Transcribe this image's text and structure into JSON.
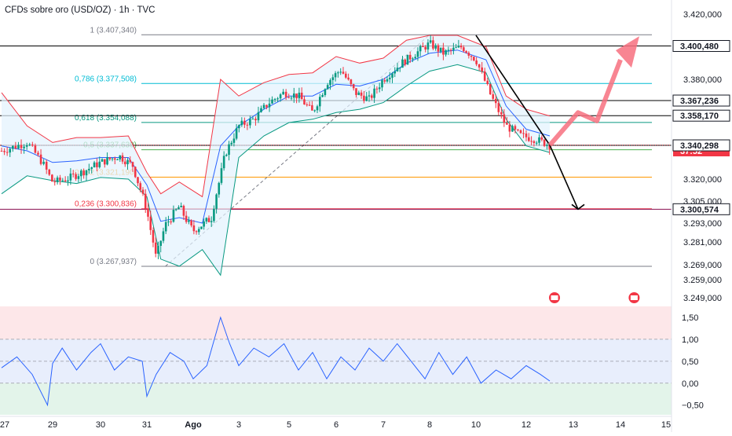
{
  "header": {
    "title": "CFDs sobre oro (USD/OZ) · 1h · TVC"
  },
  "colors": {
    "bull": "#089981",
    "bear": "#f23645",
    "bb_upper": "#f23645",
    "bb_lower": "#089981",
    "bb_mid": "#2962ff",
    "bb_fill": "#e3f2fd",
    "osc": "#2962ff",
    "projection_up": "#f7707f",
    "projection_down": "#000000"
  },
  "chart_data": [
    {
      "type": "candlestick",
      "title": "",
      "symbol": "CFDs sobre oro (USD/OZ)",
      "interval": "1h",
      "source": "TVC",
      "ylim": [
        3244000,
        3425000
      ],
      "y_ticks": [
        "3.420,000",
        "3.380,000",
        "3.320,000",
        "3.305,000",
        "3.293,000",
        "3.281,000",
        "3.269,000",
        "3.259,000",
        "3.249,000"
      ],
      "y_tick_values": [
        3420000,
        3380000,
        3320000,
        3305000,
        3293000,
        3281000,
        3269000,
        3259000,
        3249000
      ],
      "x_ticks": [
        "27",
        "29",
        "30",
        "31",
        "Ago",
        "3",
        "5",
        "6",
        "7",
        "8",
        "10",
        "12",
        "13",
        "14",
        "15"
      ],
      "x_tick_days": [
        0,
        1,
        2,
        3,
        4,
        5,
        6,
        7,
        8,
        9,
        10,
        11,
        12,
        13,
        14
      ],
      "price_labels": [
        {
          "text": "3.400,480",
          "value": 3400480,
          "style": "dark"
        },
        {
          "text": "3.367,236",
          "value": 3367236,
          "style": "dark"
        },
        {
          "text": "3.358,170",
          "value": 3358170,
          "style": "dark"
        },
        {
          "text": "3.340,410",
          "value": 3340410,
          "style": "red"
        },
        {
          "text": "37:52",
          "value": 3337000,
          "style": "red-sub"
        },
        {
          "text": "3.340,298",
          "value": 3340298,
          "style": "dark"
        },
        {
          "text": "3.300,574",
          "value": 3300574,
          "style": "dark"
        }
      ],
      "horizontal_lines": [
        {
          "value": 3400480,
          "color": "#000000"
        },
        {
          "value": 3367236,
          "color": "#000000"
        },
        {
          "value": 3358170,
          "color": "#000000"
        },
        {
          "value": 3340298,
          "color": "#000000"
        },
        {
          "value": 3300574,
          "color": "#880e4f"
        }
      ],
      "fibonacci": [
        {
          "label": "1 (3.407,340)",
          "value": 3407340,
          "color": "#787b86"
        },
        {
          "label": "0,786 (3.377,508)",
          "value": 3377508,
          "color": "#00bcd4"
        },
        {
          "label": "0,618 (3.354,088)",
          "value": 3354088,
          "color": "#089981"
        },
        {
          "label": "0,5 (3.337,639)",
          "value": 3337639,
          "color": "#4caf50"
        },
        {
          "label": "0,382 (3.321,190)",
          "value": 3321190,
          "color": "#ff9800"
        },
        {
          "label": "0,236 (3.300,836)",
          "value": 3300836,
          "color": "#f23645"
        },
        {
          "label": "0 (3.267,937)",
          "value": 3267937,
          "color": "#787b86"
        }
      ],
      "price_path": [
        [
          0.0,
          3337000
        ],
        [
          0.5,
          3342000
        ],
        [
          0.8,
          3330000
        ],
        [
          1.0,
          3318000
        ],
        [
          1.3,
          3320000
        ],
        [
          1.6,
          3324000
        ],
        [
          2.0,
          3330000
        ],
        [
          2.4,
          3334000
        ],
        [
          2.7,
          3328000
        ],
        [
          3.0,
          3300000
        ],
        [
          3.2,
          3272000
        ],
        [
          3.4,
          3292000
        ],
        [
          3.7,
          3302000
        ],
        [
          4.0,
          3288000
        ],
        [
          4.4,
          3296000
        ],
        [
          4.7,
          3335000
        ],
        [
          5.0,
          3352000
        ],
        [
          5.3,
          3356000
        ],
        [
          5.6,
          3366000
        ],
        [
          5.9,
          3372000
        ],
        [
          6.2,
          3370000
        ],
        [
          6.5,
          3360000
        ],
        [
          6.8,
          3378000
        ],
        [
          7.1,
          3386000
        ],
        [
          7.4,
          3372000
        ],
        [
          7.7,
          3368000
        ],
        [
          8.0,
          3380000
        ],
        [
          8.4,
          3390000
        ],
        [
          8.8,
          3398000
        ],
        [
          9.0,
          3402000
        ],
        [
          9.3,
          3396000
        ],
        [
          9.7,
          3400000
        ],
        [
          10.0,
          3392000
        ],
        [
          10.3,
          3370000
        ],
        [
          10.6,
          3352000
        ],
        [
          10.9,
          3346000
        ],
        [
          11.2,
          3344000
        ],
        [
          11.5,
          3340410
        ]
      ],
      "bollinger": {
        "upper": [
          [
            0.0,
            3372000
          ],
          [
            0.5,
            3352000
          ],
          [
            1.0,
            3342000
          ],
          [
            1.5,
            3345000
          ],
          [
            2.0,
            3345000
          ],
          [
            2.6,
            3346000
          ],
          [
            3.0,
            3324000
          ],
          [
            3.3,
            3310000
          ],
          [
            3.7,
            3318000
          ],
          [
            4.2,
            3308000
          ],
          [
            4.6,
            3380000
          ],
          [
            5.0,
            3370000
          ],
          [
            5.5,
            3378000
          ],
          [
            6.0,
            3383000
          ],
          [
            6.5,
            3384000
          ],
          [
            7.0,
            3394000
          ],
          [
            7.5,
            3390000
          ],
          [
            8.0,
            3393000
          ],
          [
            8.5,
            3404000
          ],
          [
            9.0,
            3407000
          ],
          [
            9.6,
            3407000
          ],
          [
            10.2,
            3400000
          ],
          [
            10.6,
            3370000
          ],
          [
            11.0,
            3362000
          ],
          [
            11.5,
            3358000
          ]
        ],
        "middle": [
          [
            0.0,
            3340000
          ],
          [
            0.5,
            3337000
          ],
          [
            1.0,
            3330000
          ],
          [
            1.5,
            3331000
          ],
          [
            2.0,
            3333000
          ],
          [
            2.6,
            3333000
          ],
          [
            3.0,
            3316000
          ],
          [
            3.3,
            3294000
          ],
          [
            3.7,
            3296000
          ],
          [
            4.2,
            3293000
          ],
          [
            4.6,
            3340000
          ],
          [
            5.0,
            3352000
          ],
          [
            5.5,
            3362000
          ],
          [
            6.0,
            3370000
          ],
          [
            6.5,
            3370000
          ],
          [
            7.0,
            3377000
          ],
          [
            7.5,
            3376000
          ],
          [
            8.0,
            3380000
          ],
          [
            8.5,
            3390000
          ],
          [
            9.0,
            3396000
          ],
          [
            9.6,
            3398000
          ],
          [
            10.2,
            3392000
          ],
          [
            10.6,
            3364000
          ],
          [
            11.0,
            3350000
          ],
          [
            11.5,
            3346000
          ]
        ],
        "lower": [
          [
            0.0,
            3310000
          ],
          [
            0.5,
            3322000
          ],
          [
            1.0,
            3319000
          ],
          [
            1.5,
            3317000
          ],
          [
            2.0,
            3321000
          ],
          [
            2.6,
            3320000
          ],
          [
            3.0,
            3308000
          ],
          [
            3.3,
            3272000
          ],
          [
            3.7,
            3268000
          ],
          [
            4.2,
            3277000
          ],
          [
            4.6,
            3262000
          ],
          [
            5.0,
            3333000
          ],
          [
            5.5,
            3346000
          ],
          [
            6.0,
            3354000
          ],
          [
            6.5,
            3356000
          ],
          [
            7.0,
            3360000
          ],
          [
            7.5,
            3362000
          ],
          [
            8.0,
            3366000
          ],
          [
            8.5,
            3376000
          ],
          [
            9.0,
            3385000
          ],
          [
            9.6,
            3389000
          ],
          [
            10.2,
            3384000
          ],
          [
            10.6,
            3356000
          ],
          [
            11.0,
            3340000
          ],
          [
            11.5,
            3336000
          ]
        ]
      },
      "projection_down": [
        [
          10.0,
          3407000
        ],
        [
          11.5,
          3340410
        ],
        [
          12.1,
          3300574
        ]
      ],
      "projection_up": [
        [
          11.5,
          3340410
        ],
        [
          12.1,
          3360000
        ],
        [
          12.5,
          3355000
        ],
        [
          13.0,
          3392000
        ]
      ],
      "events_day": [
        11.6,
        13.3
      ]
    },
    {
      "type": "line",
      "title": "",
      "ylim": [
        -0.72,
        1.75
      ],
      "y_ticks": [
        "1,50",
        "1,00",
        "0,50",
        "0,00",
        "−0,50"
      ],
      "y_tick_values": [
        1.5,
        1.0,
        0.5,
        0.0,
        -0.5
      ],
      "bands": [
        {
          "from": 1.0,
          "to": 1.75,
          "color": "#fde7e9"
        },
        {
          "from": 0.0,
          "to": 1.0,
          "color": "#e8eefc"
        },
        {
          "from": -0.72,
          "to": 0.0,
          "color": "#e3f4ea"
        }
      ],
      "x": [
        0.0,
        0.3,
        0.6,
        0.9,
        1.0,
        1.2,
        1.5,
        1.8,
        2.0,
        2.3,
        2.6,
        2.9,
        3.0,
        3.2,
        3.5,
        3.8,
        4.0,
        4.3,
        4.6,
        4.8,
        5.0,
        5.3,
        5.6,
        5.9,
        6.2,
        6.5,
        6.8,
        7.1,
        7.4,
        7.7,
        8.0,
        8.3,
        8.6,
        8.9,
        9.2,
        9.5,
        9.8,
        10.1,
        10.4,
        10.7,
        11.0,
        11.3,
        11.5
      ],
      "values": [
        0.35,
        0.6,
        0.2,
        -0.5,
        0.45,
        0.8,
        0.3,
        0.7,
        0.9,
        0.3,
        0.6,
        0.5,
        -0.3,
        0.2,
        0.7,
        0.5,
        0.1,
        0.4,
        1.5,
        0.9,
        0.4,
        0.8,
        0.6,
        0.9,
        0.3,
        0.7,
        0.1,
        0.6,
        0.3,
        0.8,
        0.5,
        0.9,
        0.5,
        0.1,
        0.7,
        0.2,
        0.6,
        0.0,
        0.3,
        0.1,
        0.4,
        0.2,
        0.05
      ]
    }
  ]
}
